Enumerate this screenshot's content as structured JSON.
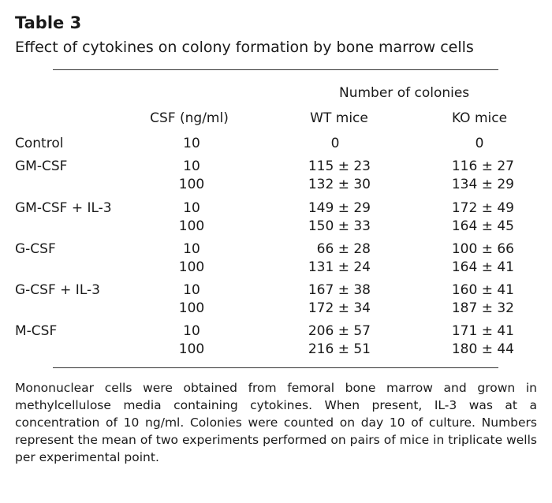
{
  "title": "Table 3",
  "subtitle": "Effect of cytokines on colony formation by bone marrow cells",
  "spanner": "Number of colonies",
  "columns": {
    "csf": "CSF (ng/ml)",
    "wt": "WT mice",
    "ko": "KO mice"
  },
  "rows": [
    {
      "label": "Control",
      "csf": "10",
      "wt": "0",
      "ko": "0"
    },
    {
      "label": "GM-CSF",
      "csf": "10",
      "wt": "115 ± 23",
      "ko": "116 ± 27"
    },
    {
      "label": "",
      "csf": "100",
      "wt": "132 ± 30",
      "ko": "134 ± 29"
    },
    {
      "label": "GM-CSF + IL-3",
      "csf": "10",
      "wt": "149 ± 29",
      "ko": "172 ± 49"
    },
    {
      "label": "",
      "csf": "100",
      "wt": "150 ± 33",
      "ko": "164 ± 45"
    },
    {
      "label": "G-CSF",
      "csf": "10",
      "wt": "66 ± 28",
      "ko": "100 ± 66"
    },
    {
      "label": "",
      "csf": "100",
      "wt": "131 ± 24",
      "ko": "164 ± 41"
    },
    {
      "label": "G-CSF + IL-3",
      "csf": "10",
      "wt": "167 ± 38",
      "ko": "160 ± 41"
    },
    {
      "label": "",
      "csf": "100",
      "wt": "172 ± 34",
      "ko": "187 ± 32"
    },
    {
      "label": "M-CSF",
      "csf": "10",
      "wt": "206 ± 57",
      "ko": "171 ± 41"
    },
    {
      "label": "",
      "csf": "100",
      "wt": "216 ± 51",
      "ko": "180 ± 44"
    }
  ],
  "footnote": "Mononuclear cells were obtained from femoral bone marrow and grown in methylcellulose media containing cytokines. When present, IL-3 was at a concentration of 10 ng/ml. Colonies were counted on day 10 of culture. Numbers represent the mean of two experiments performed on pairs of mice in triplicate wells per experimental point."
}
